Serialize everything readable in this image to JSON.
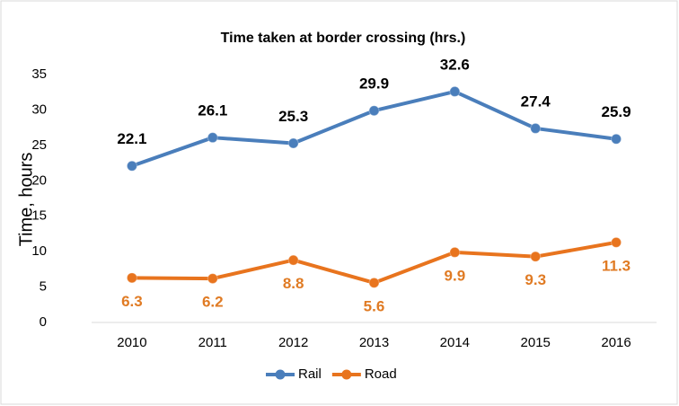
{
  "chart_data": {
    "type": "line",
    "title": "Time taken at border crossing (hrs.)",
    "y_label": "Time, hours",
    "categories": [
      "2010",
      "2011",
      "2012",
      "2013",
      "2014",
      "2015",
      "2016"
    ],
    "series": [
      {
        "name": "Rail",
        "color": "#4a7ebb",
        "label_color": "#000000",
        "values": [
          22.1,
          26.1,
          25.3,
          29.9,
          32.6,
          27.4,
          25.9
        ]
      },
      {
        "name": "Road",
        "color": "#e8741e",
        "label_color": "#e07b24",
        "values": [
          6.3,
          6.2,
          8.8,
          5.6,
          9.9,
          9.3,
          11.3
        ]
      }
    ],
    "ylim": [
      0,
      35
    ],
    "yticks": [
      0,
      5,
      10,
      15,
      20,
      25,
      30,
      35
    ],
    "grid": false,
    "legend": "bottom"
  }
}
